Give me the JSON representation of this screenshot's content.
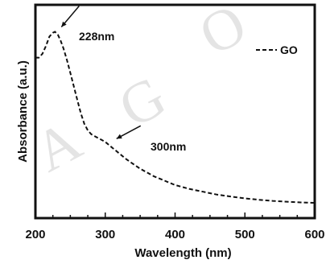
{
  "chart_data": {
    "type": "line",
    "xlabel": "Wavelength (nm)",
    "ylabel": "Absorbance (a.u.)",
    "xlim": [
      200,
      600
    ],
    "x_ticks": [
      200,
      300,
      400,
      500,
      600
    ],
    "y_ticks_labeled": false,
    "grid": false,
    "legend_position": "top-right",
    "series": [
      {
        "name": "GO",
        "line_style": "dashed",
        "color": "#111111",
        "x": [
          200,
          205,
          210,
          215,
          220,
          225,
          228,
          232,
          236,
          240,
          245,
          250,
          255,
          260,
          265,
          270,
          275,
          280,
          285,
          290,
          295,
          300,
          305,
          310,
          315,
          320,
          330,
          340,
          350,
          360,
          370,
          380,
          390,
          400,
          420,
          440,
          460,
          480,
          500,
          520,
          540,
          560,
          580,
          600
        ],
        "y": [
          0.8,
          0.8,
          0.82,
          0.86,
          0.91,
          0.93,
          0.935,
          0.92,
          0.89,
          0.85,
          0.79,
          0.72,
          0.65,
          0.58,
          0.51,
          0.455,
          0.42,
          0.4,
          0.39,
          0.38,
          0.37,
          0.36,
          0.345,
          0.33,
          0.315,
          0.3,
          0.27,
          0.245,
          0.22,
          0.2,
          0.18,
          0.165,
          0.15,
          0.135,
          0.115,
          0.1,
          0.085,
          0.075,
          0.065,
          0.058,
          0.052,
          0.048,
          0.044,
          0.042
        ]
      }
    ],
    "annotations": [
      {
        "text": "228nm",
        "x": 228
      },
      {
        "text": "300nm",
        "x": 300
      }
    ]
  },
  "watermark": {
    "letters": [
      "A",
      "G",
      "O"
    ]
  }
}
